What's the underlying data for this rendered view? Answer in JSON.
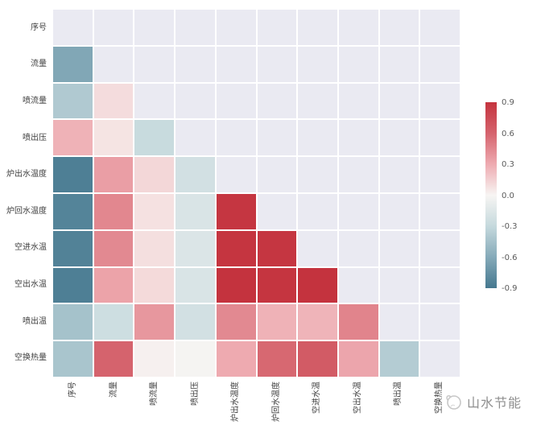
{
  "watermark": {
    "text": "山水节能"
  },
  "chart_data": {
    "type": "heatmap",
    "title": "",
    "xlabel": "",
    "ylabel": "",
    "categories": [
      "序号",
      "流量",
      "喷流量",
      "喷出压",
      "炉出水温度",
      "炉回水温度",
      "空进水温",
      "空出水温",
      "喷出温",
      "空换热量"
    ],
    "mask": "upper-triangle-and-diagonal-hidden",
    "grid": true,
    "plot_bg": "#eaeaf2",
    "gridline_color": "#ffffff",
    "matrix": [
      [
        null,
        null,
        null,
        null,
        null,
        null,
        null,
        null,
        null,
        null
      ],
      [
        -0.62,
        null,
        null,
        null,
        null,
        null,
        null,
        null,
        null,
        null
      ],
      [
        -0.4,
        0.1,
        null,
        null,
        null,
        null,
        null,
        null,
        null,
        null
      ],
      [
        0.27,
        0.07,
        -0.28,
        null,
        null,
        null,
        null,
        null,
        null,
        null
      ],
      [
        -0.86,
        0.35,
        0.12,
        -0.22,
        null,
        null,
        null,
        null,
        null,
        null
      ],
      [
        -0.83,
        0.45,
        0.08,
        -0.18,
        0.88,
        null,
        null,
        null,
        null,
        null
      ],
      [
        -0.84,
        0.44,
        0.09,
        -0.17,
        0.89,
        0.88,
        null,
        null,
        null,
        null
      ],
      [
        -0.86,
        0.33,
        0.11,
        -0.18,
        0.91,
        0.89,
        0.9,
        null,
        null,
        null
      ],
      [
        -0.45,
        -0.25,
        0.38,
        -0.22,
        0.44,
        0.27,
        0.26,
        0.46,
        null,
        null
      ],
      [
        -0.43,
        0.6,
        0.02,
        -0.01,
        0.3,
        0.58,
        0.65,
        0.32,
        -0.38,
        null
      ]
    ],
    "colormap": {
      "stops": [
        [
          -0.9,
          "#45788f"
        ],
        [
          -0.6,
          "#85aab9"
        ],
        [
          -0.3,
          "#c5d9dd"
        ],
        [
          0.0,
          "#f7f5f3"
        ],
        [
          0.3,
          "#eeaab0"
        ],
        [
          0.6,
          "#d5636d"
        ],
        [
          0.9,
          "#c4333e"
        ]
      ]
    },
    "colorbar": {
      "position": "right",
      "vmin": -0.9,
      "vmax": 0.9,
      "ticks": [
        "0.9",
        "0.6",
        "0.3",
        "0.0",
        "-0.3",
        "-0.6",
        "-0.9"
      ]
    }
  }
}
